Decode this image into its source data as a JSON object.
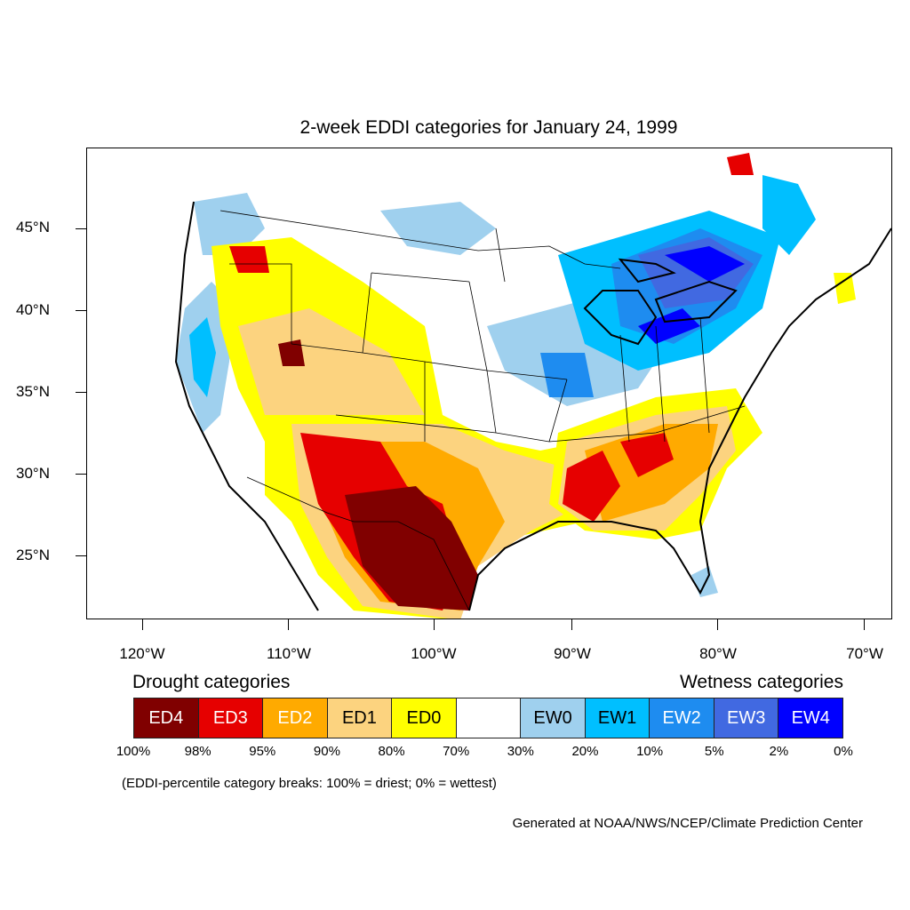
{
  "title": "2-week EDDI categories for January 24, 1999",
  "lat_labels": [
    "45°N",
    "40°N",
    "35°N",
    "30°N",
    "25°N"
  ],
  "lon_labels": [
    "120°W",
    "110°W",
    "100°W",
    "90°W",
    "80°W",
    "70°W"
  ],
  "legend": {
    "drought_heading": "Drought categories",
    "wetness_heading": "Wetness categories",
    "categories": [
      {
        "label": "ED4",
        "color": "#800000",
        "text_color": "#ffffff"
      },
      {
        "label": "ED3",
        "color": "#e60000",
        "text_color": "#ffffff"
      },
      {
        "label": "ED2",
        "color": "#ffaa00",
        "text_color": "#ffffff"
      },
      {
        "label": "ED1",
        "color": "#fcd37f",
        "text_color": "#000000"
      },
      {
        "label": "ED0",
        "color": "#ffff00",
        "text_color": "#000000"
      },
      {
        "label": "",
        "color": "#ffffff",
        "text_color": "#000000"
      },
      {
        "label": "EW0",
        "color": "#9fd0ee",
        "text_color": "#000000"
      },
      {
        "label": "EW1",
        "color": "#00bfff",
        "text_color": "#000000"
      },
      {
        "label": "EW2",
        "color": "#1e8cf0",
        "text_color": "#ffffff"
      },
      {
        "label": "EW3",
        "color": "#4169e1",
        "text_color": "#ffffff"
      },
      {
        "label": "EW4",
        "color": "#0000ff",
        "text_color": "#ffffff"
      }
    ],
    "breaks": [
      "100%",
      "98%",
      "95%",
      "90%",
      "80%",
      "70%",
      "30%",
      "20%",
      "10%",
      "5%",
      "2%",
      "0%"
    ]
  },
  "note": "(EDDI-percentile category breaks: 100% = driest; 0% = wettest)",
  "credit": "Generated at NOAA/NWS/NCEP/Climate Prediction Center"
}
